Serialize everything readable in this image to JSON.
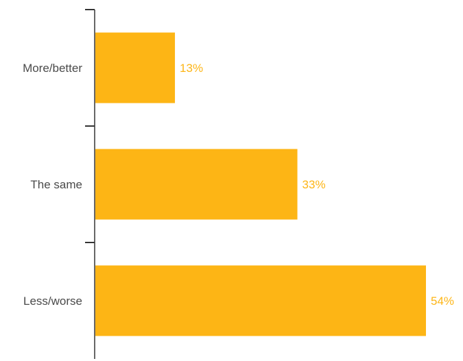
{
  "chart_data": {
    "type": "bar",
    "orientation": "horizontal",
    "categories": [
      "More/better",
      "The same",
      "Less/worse"
    ],
    "values": [
      13,
      33,
      54
    ],
    "value_labels": [
      "13%",
      "33%",
      "54%"
    ],
    "xlim": [
      0,
      54
    ],
    "grid": false,
    "legend": "none",
    "bar_color": "#FDB515",
    "axis_color": "#333333",
    "label_color": "#4a4a4a"
  }
}
